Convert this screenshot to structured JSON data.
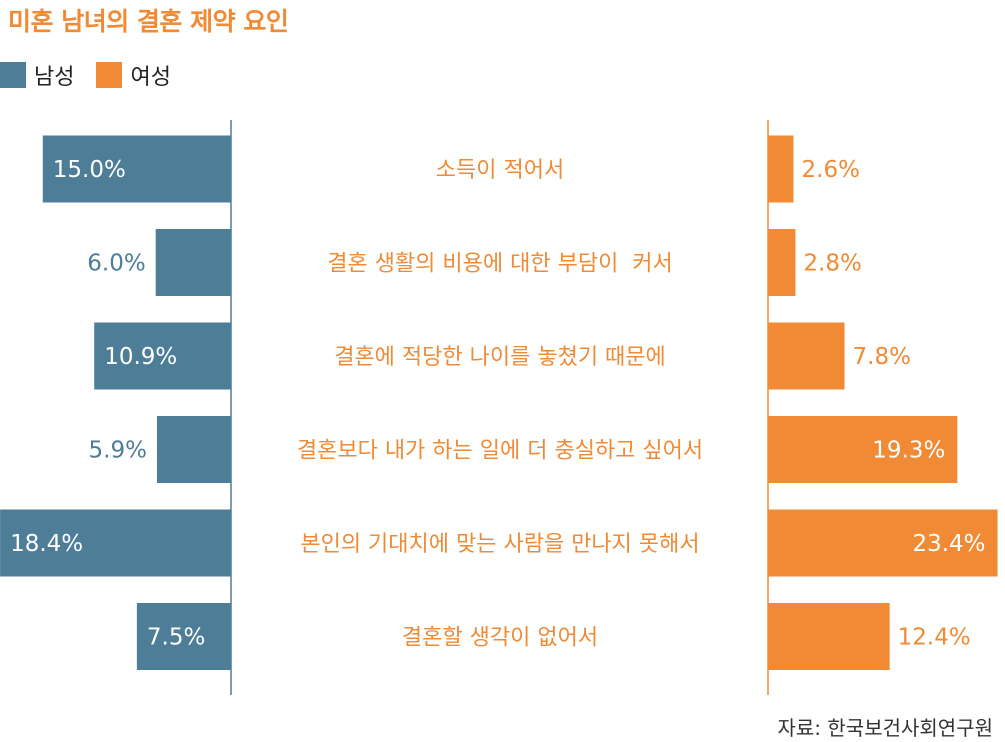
{
  "title": "미혼 남녀의 결혼 제약 요인",
  "legend": [
    {
      "name": "남성",
      "color": "#4e7d98"
    },
    {
      "name": "여성",
      "color": "#f08a35"
    }
  ],
  "source": "자료: 한국보건사회연구원",
  "colors": {
    "male": "#4e7d98",
    "female": "#f08a35",
    "axis": "#4e7d98",
    "label": "#f08a35"
  },
  "chart_data": {
    "type": "bar",
    "orientation": "horizontal-butterfly",
    "title": "미혼 남녀의 결혼 제약 요인",
    "categories": [
      "소득이 적어서",
      "결혼 생활의 비용에 대한 부담이  커서",
      "결혼에 적당한 나이를 놓쳤기 때문에",
      "결혼보다 내가 하는 일에 더 충실하고 싶어서",
      "본인의 기대치에 맞는 사람을 만나지 못해서",
      "결혼할 생각이 없어서"
    ],
    "series": [
      {
        "name": "남성",
        "values": [
          15.0,
          6.0,
          10.9,
          5.9,
          18.4,
          7.5
        ],
        "labels": [
          "15.0%",
          "6.0%",
          "10.9%",
          "5.9%",
          "18.4%",
          "7.5%"
        ]
      },
      {
        "name": "여성",
        "values": [
          2.6,
          2.8,
          7.8,
          19.3,
          23.4,
          12.4
        ],
        "labels": [
          "2.6%",
          "2.8%",
          "7.8%",
          "19.3%",
          "23.4%",
          "12.4%"
        ]
      }
    ],
    "unit": "%",
    "xlim": [
      0,
      25
    ],
    "grid": false,
    "legend_position": "top-left"
  }
}
